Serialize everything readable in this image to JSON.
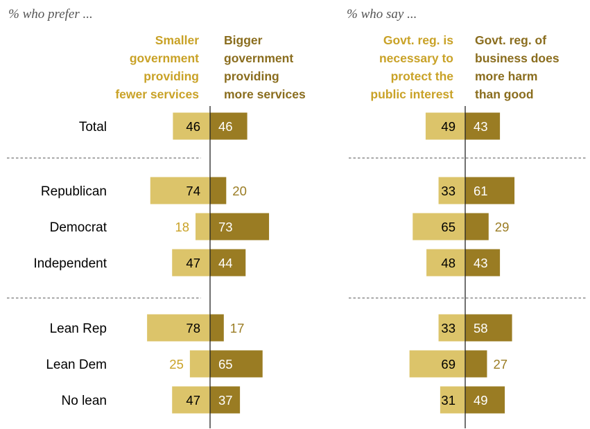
{
  "chart_data": [
    {
      "type": "bar",
      "subtitle": "% who prefer ...",
      "left_header": [
        "Smaller",
        "government",
        "providing",
        "fewer services"
      ],
      "right_header": [
        "Bigger",
        "government",
        "providing",
        "more services"
      ],
      "categories": [
        "Total",
        "Republican",
        "Democrat",
        "Independent",
        "Lean Rep",
        "Lean Dem",
        "No lean"
      ],
      "series": [
        {
          "values": [
            46,
            74,
            18,
            47,
            78,
            25,
            47
          ]
        },
        {
          "values": [
            46,
            20,
            73,
            44,
            17,
            65,
            37
          ]
        }
      ]
    },
    {
      "type": "bar",
      "subtitle": "% who say ...",
      "left_header": [
        "Govt. reg. is",
        "necessary to",
        "protect the",
        "public interest"
      ],
      "right_header": [
        "Govt. reg. of",
        "business does",
        "more harm",
        "than good"
      ],
      "categories": [
        "Total",
        "Republican",
        "Democrat",
        "Independent",
        "Lean Rep",
        "Lean Dem",
        "No lean"
      ],
      "series": [
        {
          "values": [
            49,
            33,
            65,
            48,
            33,
            69,
            31
          ]
        },
        {
          "values": [
            43,
            61,
            29,
            43,
            58,
            27,
            49
          ]
        }
      ]
    }
  ],
  "colors": {
    "left_bar": "#dcc46a",
    "right_bar": "#9a7c23",
    "left_header": "#c9a227",
    "right_header": "#8a6d1e",
    "outside_left_value": "#c9a227",
    "outside_right_value": "#9a7c23",
    "axis": "#222222",
    "divider": "#8c8c8c"
  }
}
